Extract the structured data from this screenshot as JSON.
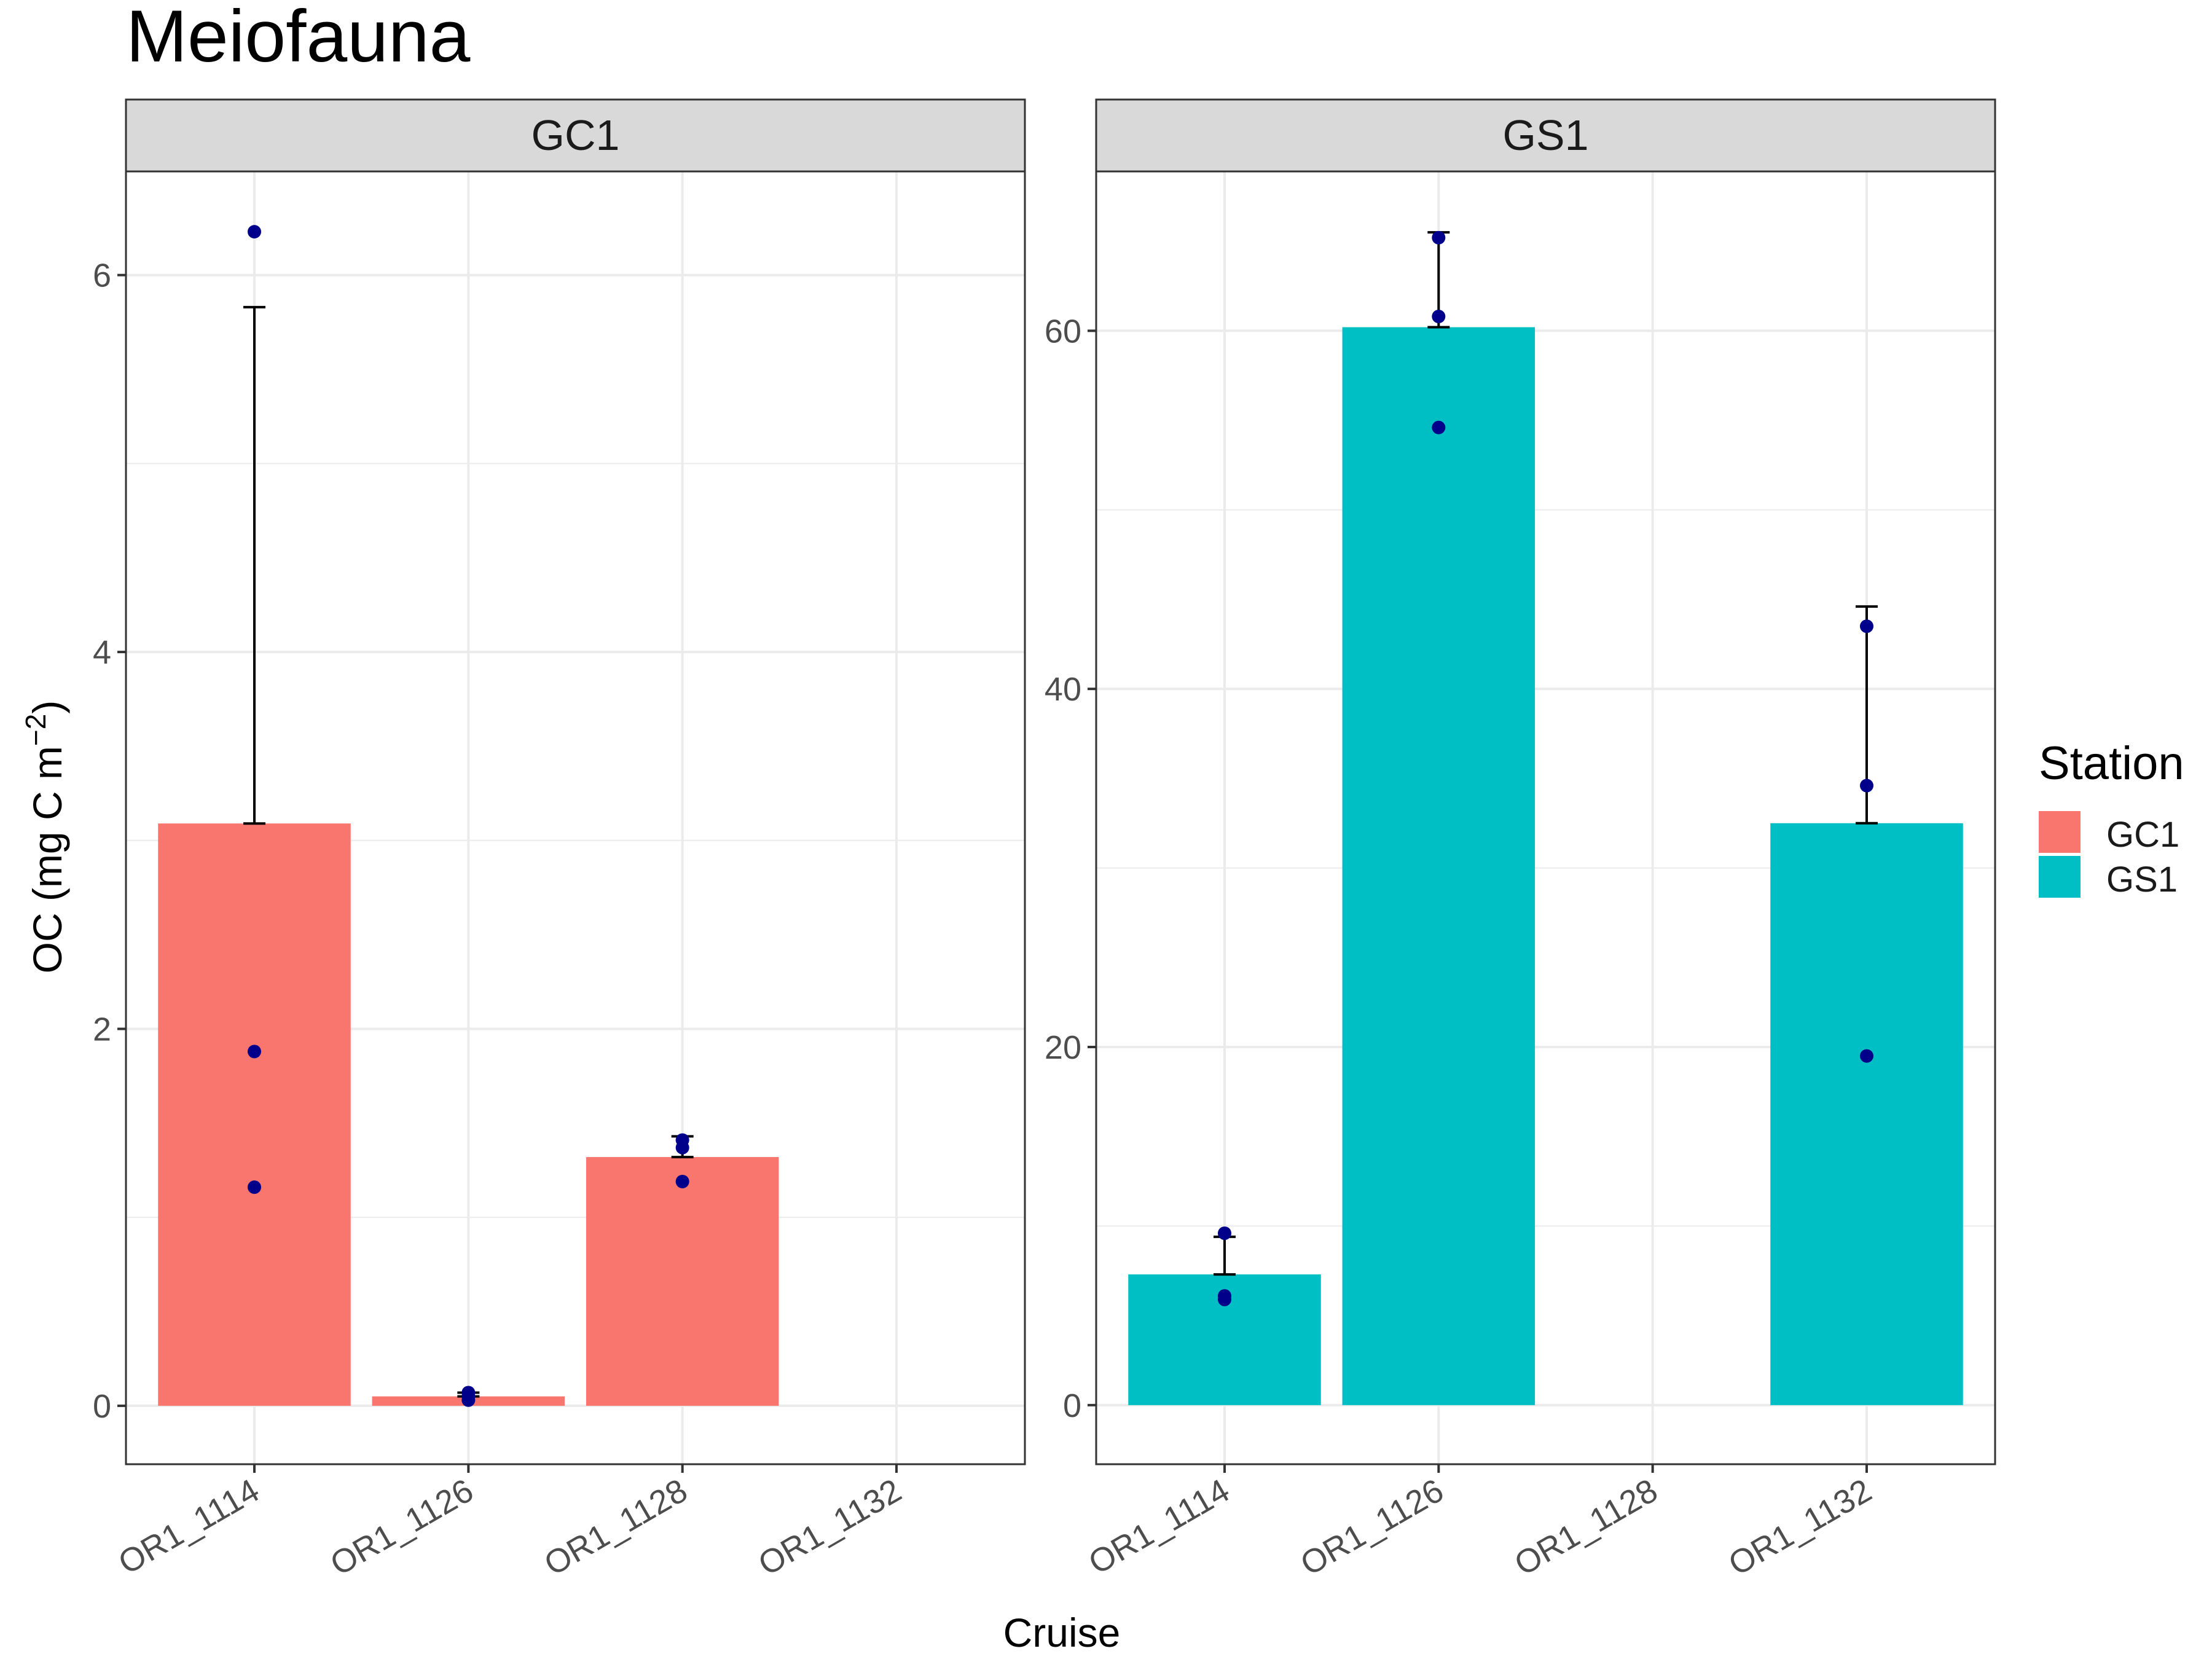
{
  "title": "Meiofauna",
  "xlabel": "Cruise",
  "ylabel_main": "OC (mg C m",
  "ylabel_sup": "−2",
  "ylabel_close": ")",
  "legend": {
    "title": "Station",
    "items": [
      {
        "label": "GC1",
        "color": "#F8766D"
      },
      {
        "label": "GS1",
        "color": "#00BFC4"
      }
    ]
  },
  "colors": {
    "points": "#00008B",
    "errorbar": "#000000",
    "strip": "#D9D9D9",
    "grid": "#EBEBEB"
  },
  "chart_data": [
    {
      "type": "bar",
      "panel": "GC1",
      "categories": [
        "OR1_1114",
        "OR1_1126",
        "OR1_1128",
        "OR1_1132"
      ],
      "ylim": [
        -0.31,
        6.55
      ],
      "yticks": [
        0,
        2,
        4,
        6
      ],
      "bars": [
        {
          "category": "OR1_1114",
          "value": 3.09,
          "error_upper": 5.83
        },
        {
          "category": "OR1_1126",
          "value": 0.05,
          "error_upper": 0.07
        },
        {
          "category": "OR1_1128",
          "value": 1.32,
          "error_upper": 1.43
        },
        {
          "category": "OR1_1132",
          "value": null,
          "error_upper": null
        }
      ],
      "points": [
        {
          "category": "OR1_1114",
          "value": 6.23
        },
        {
          "category": "OR1_1114",
          "value": 1.88
        },
        {
          "category": "OR1_1114",
          "value": 1.16
        },
        {
          "category": "OR1_1126",
          "value": 0.07
        },
        {
          "category": "OR1_1126",
          "value": 0.05
        },
        {
          "category": "OR1_1126",
          "value": 0.03
        },
        {
          "category": "OR1_1128",
          "value": 1.41
        },
        {
          "category": "OR1_1128",
          "value": 1.37
        },
        {
          "category": "OR1_1128",
          "value": 1.19
        }
      ]
    },
    {
      "type": "bar",
      "panel": "GS1",
      "categories": [
        "OR1_1114",
        "OR1_1126",
        "OR1_1128",
        "OR1_1132"
      ],
      "ylim": [
        -3.3,
        68.9
      ],
      "yticks": [
        0,
        20,
        40,
        60
      ],
      "bars": [
        {
          "category": "OR1_1114",
          "value": 7.3,
          "error_upper": 9.4
        },
        {
          "category": "OR1_1126",
          "value": 60.2,
          "error_upper": 65.5
        },
        {
          "category": "OR1_1128",
          "value": null,
          "error_upper": null
        },
        {
          "category": "OR1_1132",
          "value": 32.5,
          "error_upper": 44.6
        }
      ],
      "points": [
        {
          "category": "OR1_1114",
          "value": 9.6
        },
        {
          "category": "OR1_1114",
          "value": 6.1
        },
        {
          "category": "OR1_1114",
          "value": 5.9
        },
        {
          "category": "OR1_1126",
          "value": 65.2
        },
        {
          "category": "OR1_1126",
          "value": 60.8
        },
        {
          "category": "OR1_1126",
          "value": 54.6
        },
        {
          "category": "OR1_1132",
          "value": 43.5
        },
        {
          "category": "OR1_1132",
          "value": 34.6
        },
        {
          "category": "OR1_1132",
          "value": 19.5
        }
      ]
    }
  ]
}
